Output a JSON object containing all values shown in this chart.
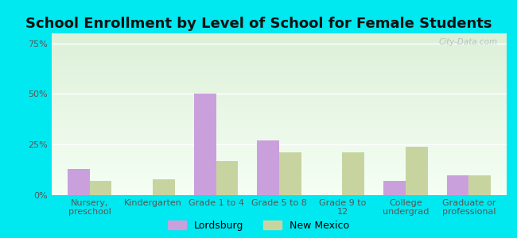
{
  "title": "School Enrollment by Level of School for Female Students",
  "categories": [
    "Nursery,\npreschool",
    "Kindergarten",
    "Grade 1 to 4",
    "Grade 5 to 8",
    "Grade 9 to\n12",
    "College\nundergrad",
    "Graduate or\nprofessional"
  ],
  "lordsburg_values": [
    13,
    0,
    50,
    27,
    0,
    7,
    10
  ],
  "newmexico_values": [
    7,
    8,
    17,
    21,
    21,
    24,
    10
  ],
  "lordsburg_color": "#c9a0dc",
  "newmexico_color": "#c8d4a0",
  "background_outer": "#00e8f0",
  "background_inner_top": "#e8f5e2",
  "background_inner_bottom": "#f8fff8",
  "ylim": [
    0,
    80
  ],
  "yticks": [
    0,
    25,
    50,
    75
  ],
  "ytick_labels": [
    "0%",
    "25%",
    "50%",
    "75%"
  ],
  "bar_width": 0.35,
  "legend_labels": [
    "Lordsburg",
    "New Mexico"
  ],
  "watermark": "City-Data.com",
  "grid_color": "#e0e8d8",
  "title_fontsize": 13,
  "tick_fontsize": 8
}
